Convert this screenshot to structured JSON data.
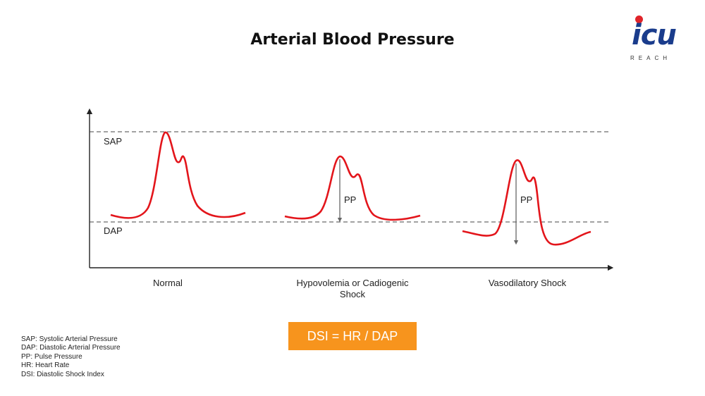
{
  "title": "Arterial Blood Pressure",
  "logo": {
    "main": "icu",
    "sub": "REACH",
    "brand_colors": {
      "blue": "#1a3c8c",
      "red": "#e0242a"
    }
  },
  "axis_labels": {
    "upper": "SAP",
    "lower": "DAP"
  },
  "pp_label": "PP",
  "panels": [
    {
      "label_line1": "Normal",
      "label_line2": ""
    },
    {
      "label_line1": "Hypovolemia or Cadiogenic",
      "label_line2": "Shock"
    },
    {
      "label_line1": "Vasodilatory Shock",
      "label_line2": ""
    }
  ],
  "formula": "DSI = HR / DAP",
  "legend": [
    "SAP: Systolic Arterial Pressure",
    "DAP: Diastolic Arterial Pressure",
    "PP: Pulse Pressure",
    "HR: Heart Rate",
    "DSI: Diastolic Shock Index"
  ],
  "colors": {
    "waveform": "#e3151b",
    "accent": "#f7941d",
    "axis": "#222222"
  }
}
